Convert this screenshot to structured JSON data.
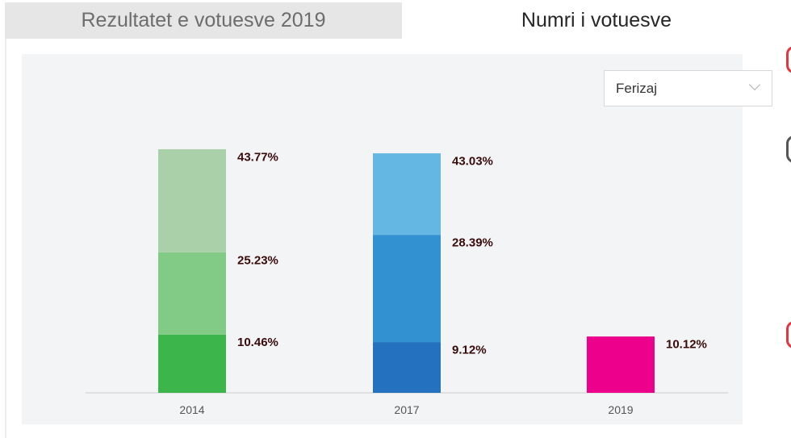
{
  "tabs": [
    {
      "label": "Rezultatet e votuesve 2019",
      "active": false
    },
    {
      "label": "Numri i votuesve",
      "active": true
    }
  ],
  "filter": {
    "selected": "Ferizaj"
  },
  "colors": {
    "panel_bg": "#f3f4f6",
    "red_button": "#e0383e",
    "2014": [
      "#3cb54a",
      "#82cb86",
      "#aad0aa"
    ],
    "2017": [
      "#2471bf",
      "#3291d1",
      "#63b7e2"
    ],
    "2019": [
      "#ec008c"
    ]
  },
  "chart_data": {
    "type": "bar",
    "stacked": true,
    "categories": [
      "2014",
      "2017",
      "2019"
    ],
    "stacks": [
      {
        "category": "2014",
        "values": [
          10.46,
          25.23,
          43.77
        ],
        "labels": [
          "10.46%",
          "25.23%",
          "43.77%"
        ]
      },
      {
        "category": "2017",
        "values": [
          9.12,
          28.39,
          43.03
        ],
        "labels": [
          "9.12%",
          "28.39%",
          "43.03%"
        ]
      },
      {
        "category": "2019",
        "values": [
          10.12
        ],
        "labels": [
          "10.12%"
        ]
      }
    ],
    "ylim": [
      0,
      45
    ],
    "grid": false,
    "legend": "none",
    "title": "",
    "xlabel": "",
    "ylabel": ""
  }
}
